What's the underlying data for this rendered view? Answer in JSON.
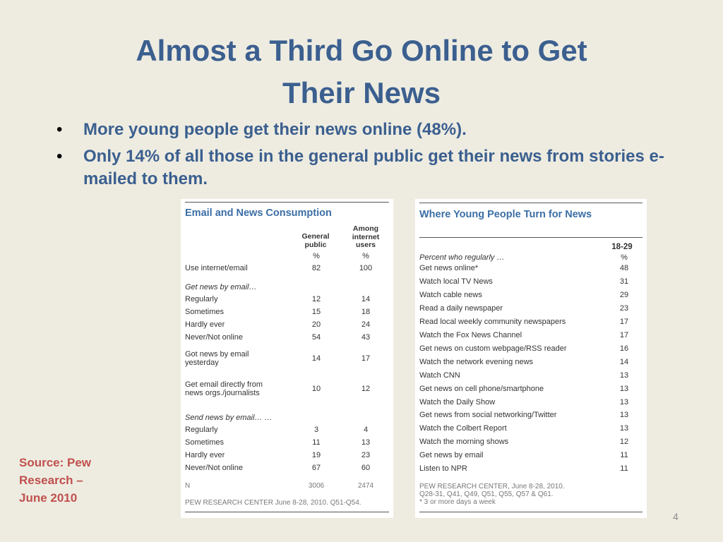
{
  "slide": {
    "title_line1": "Almost a Third Go Online to Get",
    "title_line2": "Their News",
    "bullets": [
      "More young people get their news online (48%).",
      "Only 14% of all those in the general public get their news from stories e-mailed to them."
    ],
    "source": "Source:  Pew Research – June 2010",
    "page_number": "4"
  },
  "table1": {
    "title": "Email and News Consumption",
    "col1_header": "General public",
    "col2_header": "Among internet users",
    "unit1": "%",
    "unit2": "%",
    "rows": [
      {
        "label": "Use internet/email",
        "v1": "82",
        "v2": "100"
      },
      {
        "label": "Get news by email…",
        "v1": "",
        "v2": ""
      },
      {
        "label": "Regularly",
        "v1": "12",
        "v2": "14"
      },
      {
        "label": "Sometimes",
        "v1": "15",
        "v2": "18"
      },
      {
        "label": "Hardly ever",
        "v1": "20",
        "v2": "24"
      },
      {
        "label": "Never/Not online",
        "v1": "54",
        "v2": "43"
      },
      {
        "label": "Got news by email yesterday",
        "v1": "14",
        "v2": "17"
      },
      {
        "label": "Get email directly from news orgs./journalists",
        "v1": "10",
        "v2": "12"
      },
      {
        "label": "Send news by email… …",
        "v1": "",
        "v2": ""
      },
      {
        "label": "Regularly",
        "v1": "3",
        "v2": "4"
      },
      {
        "label": "Sometimes",
        "v1": "11",
        "v2": "13"
      },
      {
        "label": "Hardly ever",
        "v1": "19",
        "v2": "23"
      },
      {
        "label": "Never/Not online",
        "v1": "67",
        "v2": "60"
      },
      {
        "label": "N",
        "v1": "3006",
        "v2": "2474"
      }
    ],
    "footnote": "PEW RESEARCH CENTER June 8-28, 2010. Q51-Q54."
  },
  "table2": {
    "title": "Where Young People Turn for News",
    "col_header": "18-29",
    "unit": "%",
    "intro": "Percent who regularly …",
    "rows": [
      {
        "label": "Get news online*",
        "value": "48"
      },
      {
        "label": "Watch local TV News",
        "value": "31"
      },
      {
        "label": "Watch cable news",
        "value": "29"
      },
      {
        "label": "Read a daily newspaper",
        "value": "23"
      },
      {
        "label": "Read local weekly community newspapers",
        "value": "17"
      },
      {
        "label": "Watch the Fox News Channel",
        "value": "17"
      },
      {
        "label": "Get news on custom webpage/RSS reader",
        "value": "16"
      },
      {
        "label": "Watch  the network evening news",
        "value": "14"
      },
      {
        "label": "Watch CNN",
        "value": "13"
      },
      {
        "label": "Get news on cell phone/smartphone",
        "value": "13"
      },
      {
        "label": "Watch the Daily Show",
        "value": "13"
      },
      {
        "label": "Get news from social networking/Twitter",
        "value": "13"
      },
      {
        "label": "Watch the Colbert Report",
        "value": "13"
      },
      {
        "label": "Watch the morning shows",
        "value": "12"
      },
      {
        "label": "Get news by email",
        "value": "11"
      },
      {
        "label": "Listen to NPR",
        "value": "11"
      }
    ],
    "footnote_lines": [
      "PEW RESEARCH CENTER, June 8-28, 2010.",
      "Q28-31, Q41, Q49, Q51, Q55, Q57 & Q61.",
      "* 3 or more days a week"
    ]
  }
}
